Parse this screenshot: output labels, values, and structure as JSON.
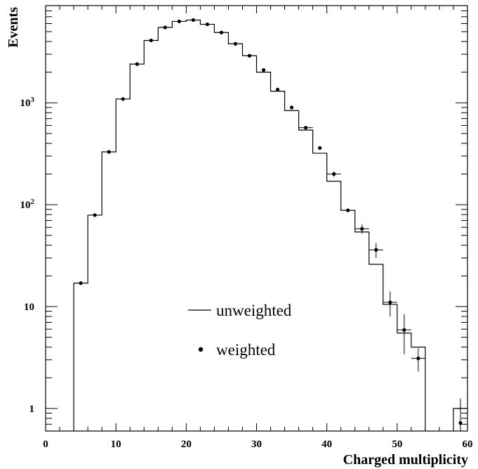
{
  "chart_data": {
    "type": "step-histogram-with-points",
    "xlabel": "Charged multiplicity",
    "ylabel": "Events",
    "xlim": [
      0,
      60
    ],
    "ylim": [
      0.6,
      9000
    ],
    "yscale": "log",
    "grid": false,
    "legend_placement": "lower-center",
    "x_ticks": [
      {
        "value": 0,
        "label": "0"
      },
      {
        "value": 10,
        "label": "10"
      },
      {
        "value": 20,
        "label": "20"
      },
      {
        "value": 30,
        "label": "30"
      },
      {
        "value": 40,
        "label": "40"
      },
      {
        "value": 50,
        "label": "50"
      },
      {
        "value": 60,
        "label": "60"
      }
    ],
    "y_ticks": [
      {
        "value": 1,
        "base": "1",
        "exp": ""
      },
      {
        "value": 10,
        "base": "10",
        "exp": ""
      },
      {
        "value": 100,
        "base": "10",
        "exp": "2"
      },
      {
        "value": 1000,
        "base": "10",
        "exp": "3"
      }
    ],
    "series": [
      {
        "name": "unweighted",
        "kind": "step",
        "bin_edges": [
          4,
          6,
          8,
          10,
          12,
          14,
          16,
          18,
          20,
          22,
          24,
          26,
          28,
          30,
          32,
          34,
          36,
          38,
          40,
          42,
          44,
          46,
          48,
          50,
          52,
          54
        ],
        "values": [
          17,
          79,
          330,
          1090,
          2400,
          4100,
          5500,
          6300,
          6500,
          5900,
          4900,
          3800,
          2900,
          2000,
          1300,
          840,
          540,
          320,
          170,
          88,
          54,
          26,
          10.5,
          5.5,
          4
        ]
      },
      {
        "name": "weighted",
        "kind": "points",
        "x": [
          5,
          7,
          9,
          11,
          13,
          15,
          17,
          19,
          21,
          23,
          25,
          27,
          29,
          31,
          33,
          35,
          37,
          39,
          41,
          43,
          45,
          47,
          49,
          51,
          53
        ],
        "y": [
          17,
          79,
          330,
          1090,
          2400,
          4100,
          5500,
          6300,
          6500,
          5900,
          4900,
          3800,
          2900,
          2100,
          1350,
          900,
          570,
          360,
          200,
          88,
          58,
          36,
          11,
          5.9,
          3.1
        ],
        "yerr_low": [
          0,
          0,
          0,
          0,
          0,
          0,
          0,
          0,
          0,
          0,
          0,
          0,
          0,
          0,
          0,
          0,
          20,
          0,
          12,
          0,
          6,
          6,
          3,
          2.5,
          0.8
        ],
        "yerr_high": [
          0,
          0,
          0,
          0,
          0,
          0,
          0,
          0,
          0,
          0,
          0,
          0,
          0,
          0,
          0,
          0,
          20,
          0,
          12,
          0,
          6,
          6,
          3,
          2.5,
          0.8
        ]
      }
    ]
  }
}
